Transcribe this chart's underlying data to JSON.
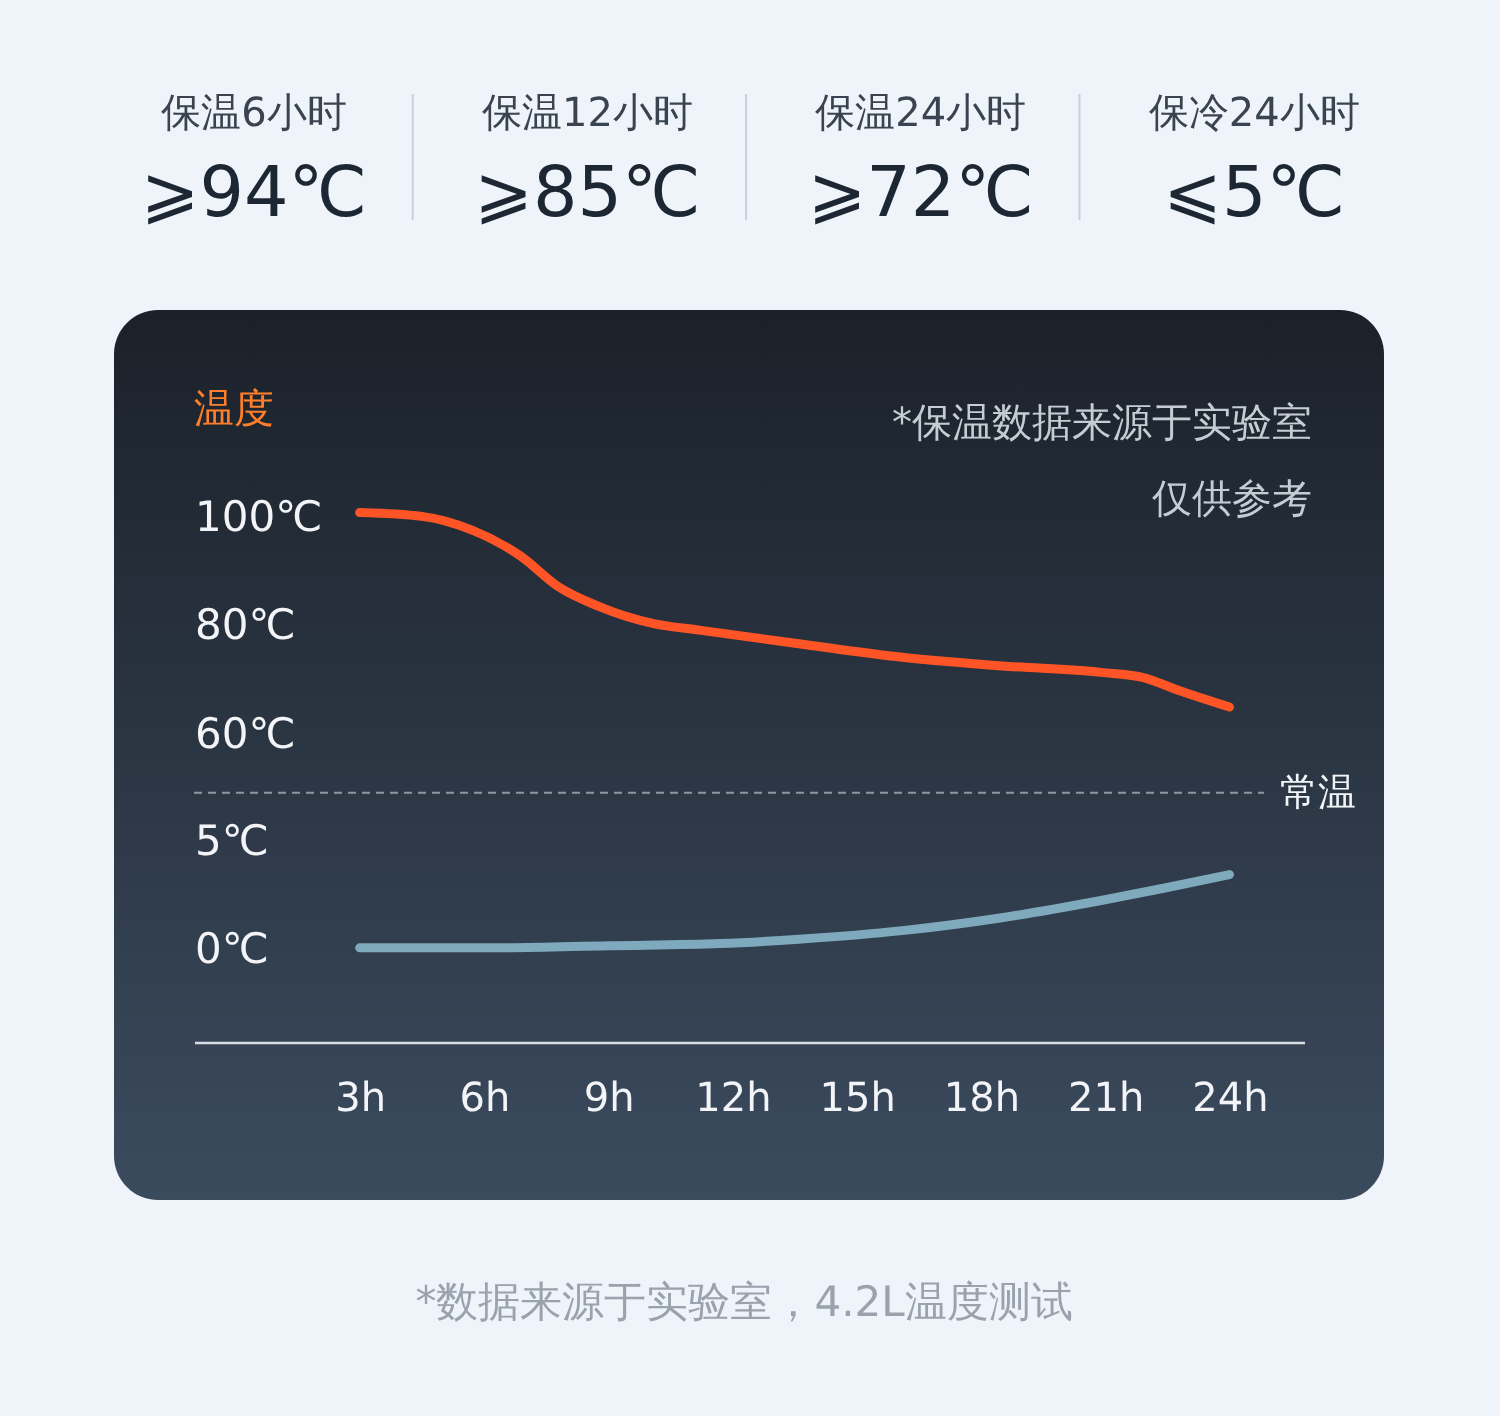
{
  "chart_data": {
    "type": "line",
    "annotations": [
      "保温6小时",
      "⩾94℃",
      "保温12小时",
      "⩾85℃",
      "保温24小时",
      "⩾72℃",
      "保冷24小时",
      "⩽5℃",
      "温度",
      "*保温数据来源于实验室",
      "仅供参考",
      "*数据来源于实验室，4.2L温度测试"
    ],
    "xlim": [
      -1,
      25.8
    ],
    "xticks": [
      {
        "value": 3,
        "label": "3h"
      },
      {
        "value": 6,
        "label": "6h"
      },
      {
        "value": 9,
        "label": "9h"
      },
      {
        "value": 12,
        "label": "12h"
      },
      {
        "value": 15,
        "label": "15h"
      },
      {
        "value": 18,
        "label": "18h"
      },
      {
        "value": 21,
        "label": "21h"
      },
      {
        "value": 24,
        "label": "24h"
      }
    ],
    "ylim": [
      -25.9,
      138.4
    ],
    "yticks": [
      {
        "value": 60,
        "label": "60℃"
      },
      {
        "value": 80,
        "label": "80℃"
      },
      {
        "value": 100,
        "label": "100℃"
      }
    ],
    "y2lim": [
      -11.6,
      29.7
    ],
    "y2ticks": [
      {
        "value": 0,
        "label": "0℃"
      },
      {
        "value": 5,
        "label": "5℃"
      }
    ],
    "line_style": "solid",
    "series": [
      {
        "color": "#ff5526",
        "x": [
          3,
          4.5,
          5.7,
          6.9,
          7.8,
          8.8,
          10.1,
          11.2,
          13.6,
          16.1,
          18.5,
          20.9,
          21.9,
          22.8,
          24
        ],
        "values": [
          101,
          100.3,
          97.8,
          92.9,
          87.3,
          83.6,
          80.5,
          79.3,
          76.8,
          74.3,
          72.7,
          71.5,
          70.6,
          68.1,
          65.1
        ]
      },
      {
        "color": "#7fa9bd",
        "axis": "y2",
        "x": [
          3,
          6.4,
          9,
          11.7,
          13.6,
          16.1,
          18.5,
          20.9,
          22.5,
          24
        ],
        "values": [
          0.1,
          0.1,
          0.2,
          0.3,
          0.5,
          0.9,
          1.5,
          2.3,
          2.9,
          3.5
        ]
      }
    ],
    "ref_lines": [
      {
        "axis": "y2",
        "value": 7.3,
        "label": "常温",
        "color": "#8c97a3",
        "line_style": "dashed"
      }
    ]
  }
}
